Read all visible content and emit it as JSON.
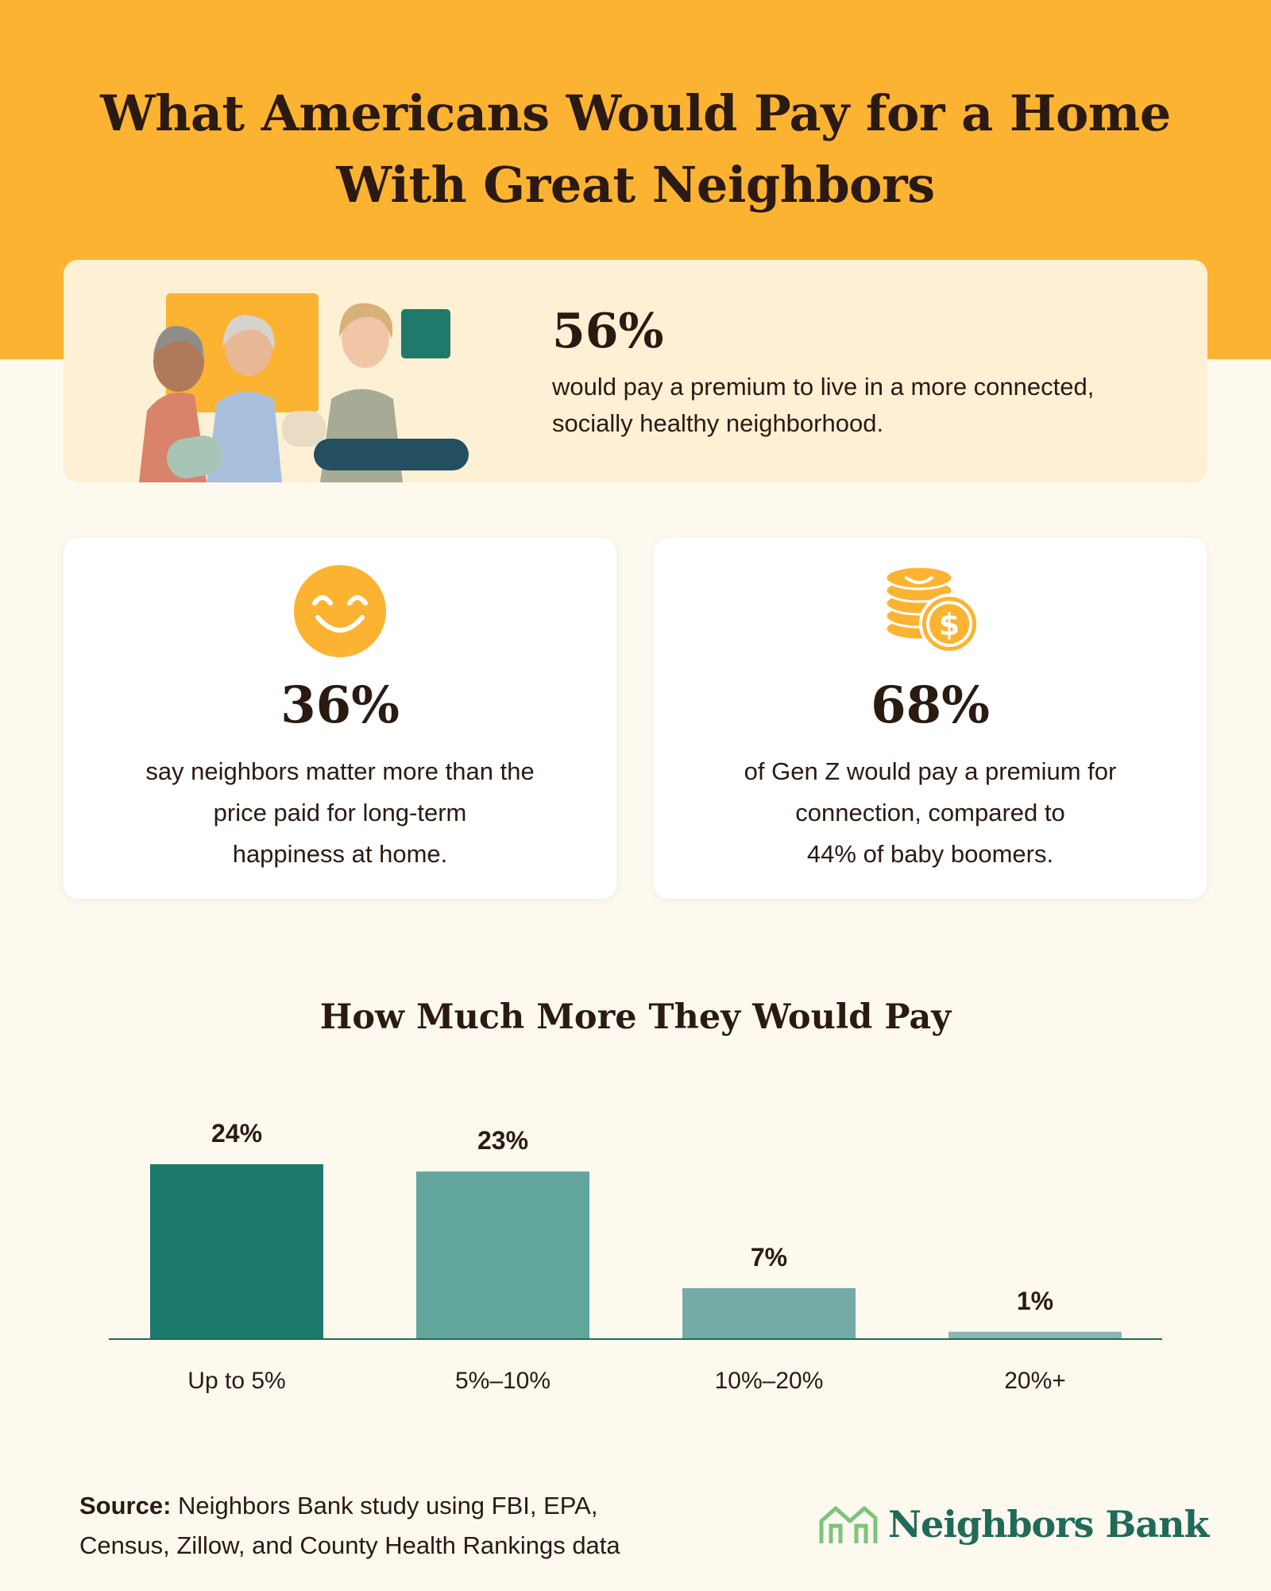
{
  "title_lines": [
    "What Americans Would Pay for a Home",
    "With Great Neighbors"
  ],
  "hero": {
    "stat": "56%",
    "text_lines": [
      "would pay a premium to live in a more connected,",
      "socially healthy neighborhood."
    ]
  },
  "cards": [
    {
      "icon": "smiley-icon",
      "stat": "36%",
      "text_lines": [
        "say neighbors matter more than the",
        "price paid for long-term",
        "happiness at home."
      ]
    },
    {
      "icon": "coins-dollar-icon",
      "stat": "68%",
      "text_lines": [
        "of Gen Z would pay a premium for",
        "connection, compared to",
        "44% of baby boomers."
      ]
    }
  ],
  "chart_data": {
    "type": "bar",
    "title": "How Much More They Would Pay",
    "categories": [
      "Up to 5%",
      "5%–10%",
      "10%–20%",
      "20%+"
    ],
    "values": [
      24,
      23,
      7,
      1
    ],
    "value_labels": [
      "24%",
      "23%",
      "7%",
      "1%"
    ],
    "bar_colors": [
      "#1c7a6d",
      "#62a59d",
      "#74aba6",
      "#8ab7b3"
    ],
    "ylim": [
      0,
      24
    ],
    "grid": false,
    "legend": "none"
  },
  "source": {
    "label": "Source:",
    "line1": "Neighbors Bank study using FBI, EPA,",
    "line2": "Census, Zillow, and County Health Rankings data"
  },
  "brand": {
    "name": "Neighbors Bank",
    "icon": "house-logo-icon"
  },
  "colors": {
    "band": "#fdb332",
    "background": "#fdf9ef",
    "hero_card": "#fef0d4",
    "icon_yellow": "#fdb332",
    "brand_green": "#1f6b57",
    "text": "#2a1a12"
  }
}
